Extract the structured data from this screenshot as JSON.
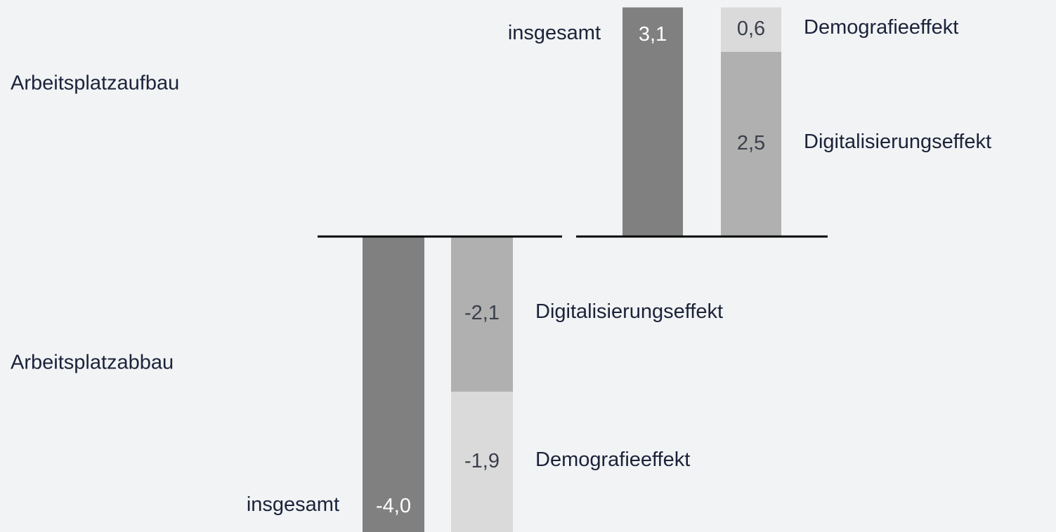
{
  "chart_data": {
    "type": "bar",
    "categories": [
      "Arbeitsplatzaufbau",
      "Arbeitsplatzabbau"
    ],
    "series": [
      {
        "name": "insgesamt",
        "color": "#808080",
        "values": [
          3.1,
          -4.0
        ],
        "value_labels": [
          "3,1",
          "-4,0"
        ]
      },
      {
        "name": "Digitalisierungseffekt",
        "color": "#b0b0b0",
        "values": [
          2.5,
          -2.1
        ],
        "value_labels": [
          "2,5",
          "-2,1"
        ]
      },
      {
        "name": "Demografieeffekt",
        "color": "#dadada",
        "values": [
          0.6,
          -1.9
        ],
        "value_labels": [
          "0,6",
          "-1,9"
        ]
      }
    ]
  }
}
